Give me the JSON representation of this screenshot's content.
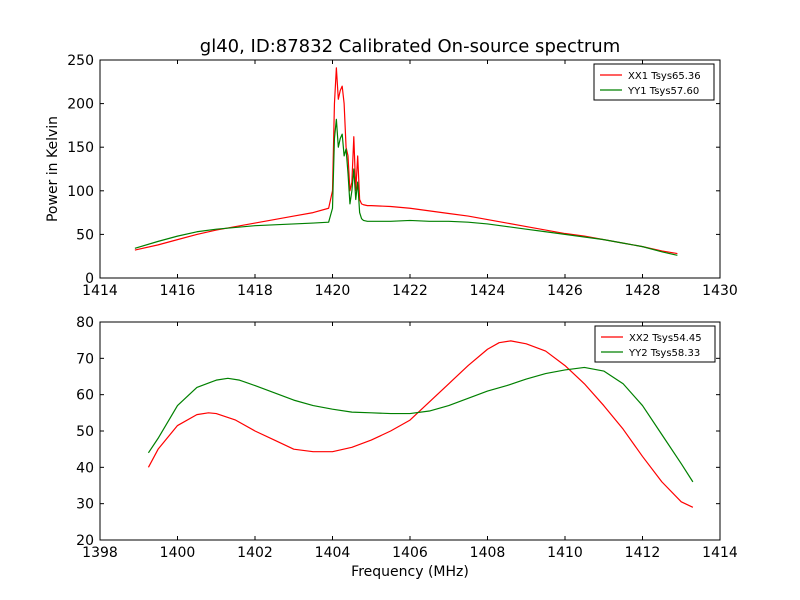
{
  "chart_data": [
    {
      "type": "line",
      "title": "gl40, ID:87832 Calibrated On-source spectrum",
      "xlabel": "",
      "ylabel": "Power in Kelvin",
      "xlim": [
        1414,
        1430
      ],
      "ylim": [
        0,
        250
      ],
      "xticks": [
        1414,
        1416,
        1418,
        1420,
        1422,
        1424,
        1426,
        1428,
        1430
      ],
      "yticks": [
        0,
        50,
        100,
        150,
        200,
        250
      ],
      "grid": false,
      "legend_position": "top-right",
      "series": [
        {
          "name": "XX1 Tsys65.36",
          "color": "#ff0000",
          "x": [
            1414.9,
            1415.5,
            1416.0,
            1416.5,
            1417.0,
            1417.5,
            1418.0,
            1418.5,
            1419.0,
            1419.5,
            1419.9,
            1420.0,
            1420.05,
            1420.1,
            1420.15,
            1420.2,
            1420.25,
            1420.3,
            1420.35,
            1420.4,
            1420.45,
            1420.5,
            1420.55,
            1420.6,
            1420.65,
            1420.7,
            1420.75,
            1420.8,
            1420.9,
            1421.0,
            1421.5,
            1422.0,
            1422.5,
            1423.0,
            1423.5,
            1424.0,
            1424.5,
            1425.0,
            1425.5,
            1426.0,
            1426.5,
            1427.0,
            1427.5,
            1428.0,
            1428.5,
            1428.9
          ],
          "y": [
            32,
            38,
            44,
            50,
            55,
            59,
            63,
            67,
            71,
            75,
            80,
            100,
            200,
            241,
            205,
            215,
            220,
            200,
            150,
            140,
            100,
            110,
            162,
            100,
            140,
            90,
            85,
            84,
            83,
            83,
            82,
            80,
            77,
            74,
            71,
            67,
            63,
            59,
            55,
            51,
            48,
            44,
            40,
            36,
            31,
            28
          ]
        },
        {
          "name": "YY1 Tsys57.60",
          "color": "#008000",
          "x": [
            1414.9,
            1415.5,
            1416.0,
            1416.5,
            1417.0,
            1417.5,
            1418.0,
            1418.5,
            1419.0,
            1419.5,
            1419.9,
            1420.0,
            1420.05,
            1420.1,
            1420.15,
            1420.2,
            1420.25,
            1420.3,
            1420.35,
            1420.4,
            1420.45,
            1420.5,
            1420.55,
            1420.6,
            1420.65,
            1420.7,
            1420.75,
            1420.8,
            1420.9,
            1421.0,
            1421.5,
            1422.0,
            1422.5,
            1423.0,
            1423.5,
            1424.0,
            1424.5,
            1425.0,
            1425.5,
            1426.0,
            1426.5,
            1427.0,
            1427.5,
            1428.0,
            1428.5,
            1428.9
          ],
          "y": [
            34,
            42,
            48,
            53,
            56,
            58,
            60,
            61,
            62,
            63,
            64,
            80,
            160,
            182,
            150,
            160,
            165,
            140,
            148,
            120,
            85,
            100,
            125,
            90,
            110,
            75,
            68,
            66,
            65,
            65,
            65,
            66,
            65,
            65,
            64,
            62,
            59,
            56,
            53,
            50,
            47,
            44,
            40,
            36,
            30,
            26
          ]
        }
      ]
    },
    {
      "type": "line",
      "title": "",
      "xlabel": "Frequency (MHz)",
      "ylabel": "",
      "xlim": [
        1398,
        1414
      ],
      "ylim": [
        20,
        80
      ],
      "xticks": [
        1398,
        1400,
        1402,
        1404,
        1406,
        1408,
        1410,
        1412,
        1414
      ],
      "yticks": [
        20,
        30,
        40,
        50,
        60,
        70,
        80
      ],
      "grid": false,
      "legend_position": "top-right",
      "series": [
        {
          "name": "XX2 Tsys54.45",
          "color": "#ff0000",
          "x": [
            1399.25,
            1399.5,
            1400.0,
            1400.5,
            1400.8,
            1401.0,
            1401.5,
            1402.0,
            1402.5,
            1403.0,
            1403.5,
            1404.0,
            1404.5,
            1405.0,
            1405.5,
            1406.0,
            1406.5,
            1407.0,
            1407.5,
            1408.0,
            1408.3,
            1408.6,
            1409.0,
            1409.5,
            1410.0,
            1410.5,
            1411.0,
            1411.5,
            1412.0,
            1412.5,
            1413.0,
            1413.3
          ],
          "y": [
            40,
            45,
            51.5,
            54.5,
            55,
            54.8,
            53,
            50,
            47.5,
            45,
            44.3,
            44.3,
            45.5,
            47.5,
            50,
            53,
            58,
            63,
            68,
            72.5,
            74.3,
            74.8,
            74,
            72,
            68,
            63,
            57,
            50.5,
            43,
            36,
            30.5,
            29
          ]
        },
        {
          "name": "YY2 Tsys58.33",
          "color": "#008000",
          "x": [
            1399.25,
            1399.5,
            1400.0,
            1400.5,
            1401.0,
            1401.3,
            1401.6,
            1402.0,
            1402.5,
            1403.0,
            1403.5,
            1404.0,
            1404.5,
            1405.0,
            1405.5,
            1406.0,
            1406.5,
            1407.0,
            1407.5,
            1408.0,
            1408.5,
            1409.0,
            1409.5,
            1410.0,
            1410.5,
            1411.0,
            1411.5,
            1412.0,
            1412.5,
            1413.0,
            1413.3
          ],
          "y": [
            44,
            48,
            57,
            62,
            64,
            64.5,
            64,
            62.5,
            60.5,
            58.5,
            57,
            56,
            55.2,
            55,
            54.8,
            54.8,
            55.5,
            57,
            59,
            61,
            62.5,
            64.3,
            65.8,
            66.8,
            67.5,
            66.5,
            63,
            57,
            49,
            41,
            36
          ]
        }
      ]
    }
  ]
}
